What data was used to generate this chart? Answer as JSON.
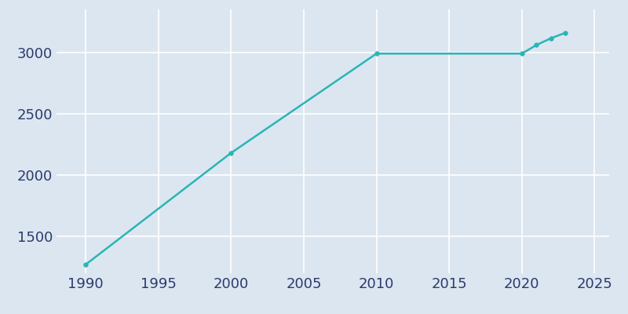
{
  "years": [
    1990,
    2000,
    2010,
    2020,
    2021,
    2022,
    2023
  ],
  "population": [
    1270,
    2180,
    2990,
    2990,
    3060,
    3115,
    3160
  ],
  "line_color": "#2ab5b5",
  "marker_color": "#2ab5b5",
  "background_color": "#dce6f0",
  "axes_background_color": "#dce6f0",
  "figure_background_color": "#dce6f0",
  "grid_color": "#ffffff",
  "tick_color": "#2b3a6e",
  "xlim": [
    1988,
    2026
  ],
  "ylim": [
    1200,
    3350
  ],
  "yticks": [
    1500,
    2000,
    2500,
    3000
  ],
  "xticks": [
    1990,
    1995,
    2000,
    2005,
    2010,
    2015,
    2020,
    2025
  ],
  "line_width": 1.8,
  "marker_size": 4,
  "tick_labelsize": 13
}
